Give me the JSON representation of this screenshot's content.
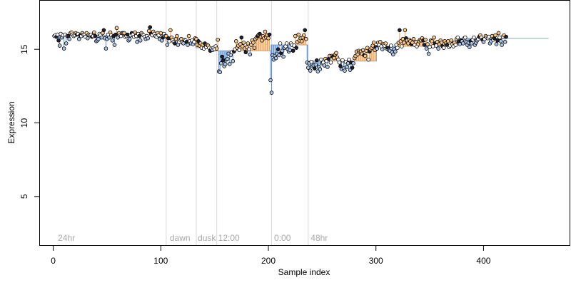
{
  "chart_data": {
    "type": "scatter",
    "title": "",
    "xlabel": "Sample index",
    "ylabel": "Expression",
    "xlim": [
      -13,
      480
    ],
    "ylim": [
      1.7,
      18.3
    ],
    "xticks": [
      0,
      100,
      200,
      300,
      400
    ],
    "yticks": [
      5,
      10,
      15
    ],
    "grid": false,
    "legend": "none",
    "colors": {
      "point_edge": "#000000",
      "point_fill_light": "#ffffff",
      "point_fill_dark": "#1f1f2e",
      "up_fill": "#f7c58a",
      "down_fill": "#a9c4e6",
      "up_stem": "#f2a04f",
      "down_stem": "#5b8fd6",
      "baseline": "#7ea7dc",
      "separator": "#d9d9d9",
      "annotation": "#a8a8a8"
    },
    "separators": [
      105,
      133,
      152,
      203,
      237
    ],
    "annotations": [
      {
        "x": 3,
        "text": "24hr"
      },
      {
        "x": 107,
        "text": "dawn"
      },
      {
        "x": 133,
        "text": "dusk"
      },
      {
        "x": 152,
        "text": "12:00"
      },
      {
        "x": 204,
        "text": "0:00"
      },
      {
        "x": 238,
        "text": "48hr"
      }
    ],
    "segments": [
      {
        "start": 1,
        "end": 104,
        "level": 15.95
      },
      {
        "start": 105,
        "end": 132,
        "level": 15.55
      },
      {
        "start": 133,
        "end": 151,
        "level": 15.1
      },
      {
        "start": 152,
        "end": 202,
        "level": 14.9
      },
      {
        "start": 203,
        "end": 236,
        "level": 15.3
      },
      {
        "start": 237,
        "end": 300,
        "level": 14.2
      },
      {
        "start": 301,
        "end": 375,
        "level": 15.2
      },
      {
        "start": 376,
        "end": 460,
        "level": 15.75
      }
    ],
    "series": [
      {
        "values": [
          15.9,
          15.95,
          15.85,
          16.0,
          15.6,
          15.25,
          16.05,
          15.8,
          15.95,
          15.05,
          16.0,
          15.4,
          15.9,
          15.9,
          15.7,
          16.1,
          16.15,
          16.0,
          15.9,
          15.95,
          16.1,
          16.0,
          16.05,
          15.7,
          15.95,
          15.9,
          16.1,
          16.0,
          16.0,
          15.85,
          16.1,
          15.75,
          16.0,
          15.95,
          16.0,
          15.85,
          15.9,
          16.15,
          15.9,
          15.55,
          15.6,
          15.7,
          16.05,
          15.95,
          15.8,
          16.1,
          16.3,
          15.75,
          15.05,
          15.7,
          16.0,
          15.8,
          16.15,
          15.95,
          15.6,
          15.9,
          15.3,
          16.0,
          16.45,
          15.8,
          16.1,
          15.95,
          15.9,
          16.1,
          16.1,
          16.1,
          15.85,
          15.9,
          16.0,
          15.6,
          15.7,
          15.95,
          16.1,
          16.0,
          15.85,
          16.15,
          15.9,
          15.5,
          16.05,
          15.9,
          15.6,
          16.1,
          16.0,
          15.95,
          15.85,
          15.7,
          15.9,
          15.75,
          16.25,
          16.5,
          16.05,
          15.95,
          16.2,
          16.05,
          15.9,
          15.85,
          16.1,
          15.95,
          15.7,
          16.1,
          15.6,
          15.8,
          16.05,
          15.9,
          15.9,
          15.3,
          15.75,
          15.55,
          16.3,
          15.8,
          15.6,
          15.5,
          15.4,
          15.7,
          15.9,
          15.3,
          15.5,
          15.65,
          15.7,
          15.45,
          15.4,
          15.65,
          15.6,
          15.5,
          15.3,
          15.9,
          15.55,
          15.4,
          15.6,
          15.35,
          15.5,
          15.75,
          15.7,
          15.3,
          15.55,
          15.25,
          15.4,
          15.1,
          15.3,
          15.05,
          15.4,
          15.15,
          15.3,
          15.25,
          15.1,
          14.9,
          15.05,
          14.95,
          15.1,
          15.0,
          15.2,
          15.05,
          15.65,
          13.5,
          13.45,
          14.05,
          14.5,
          14.25,
          13.85,
          14.0,
          14.3,
          14.35,
          14.7,
          14.0,
          14.6,
          14.8,
          14.2,
          14.85,
          15.0,
          15.55,
          15.1,
          15.25,
          14.95,
          15.35,
          15.8,
          15.2,
          15.45,
          15.05,
          14.8,
          15.15,
          15.4,
          15.0,
          14.65,
          15.3,
          15.6,
          15.45,
          15.1,
          15.7,
          15.8,
          15.9,
          16.0,
          16.05,
          15.85,
          15.6,
          15.9,
          15.75,
          16.2,
          15.8,
          15.95,
          15.75,
          16.0,
          12.9,
          12.05,
          14.6,
          14.3,
          14.55,
          14.4,
          14.7,
          15.0,
          14.6,
          15.4,
          14.75,
          14.9,
          14.5,
          15.1,
          15.2,
          15.4,
          15.0,
          14.85,
          14.95,
          15.4,
          15.3,
          14.9,
          15.25,
          15.9,
          15.1,
          15.5,
          16.0,
          15.6,
          15.75,
          15.55,
          15.8,
          15.95,
          16.3,
          15.7,
          14.1,
          13.75,
          14.05,
          13.55,
          14.15,
          13.85,
          13.9,
          13.7,
          13.95,
          14.25,
          13.5,
          13.8,
          13.65,
          14.3,
          14.05,
          14.1,
          13.9,
          14.35,
          14.2,
          13.8,
          14.35,
          14.55,
          14.1,
          14.55,
          14.5,
          14.4,
          14.65,
          14.75,
          14.45,
          14.3,
          14.1,
          13.85,
          13.65,
          14.25,
          13.7,
          13.55,
          14.15,
          13.8,
          14.05,
          14.3,
          13.6,
          14.1,
          13.75,
          14.05,
          14.4,
          14.55,
          14.85,
          14.65,
          14.9,
          14.8,
          14.85,
          14.7,
          14.95,
          14.6,
          14.55,
          14.9,
          15.1,
          14.3,
          14.85,
          15.0,
          15.1,
          15.25,
          15.45,
          14.95,
          15.15,
          15.05,
          15.45,
          15.3,
          15.5,
          15.2,
          15.0,
          15.35,
          15.25,
          15.4,
          15.05,
          15.1,
          14.95,
          14.9,
          15.25,
          14.8,
          14.65,
          15.0,
          14.85,
          15.3,
          15.1,
          15.45,
          16.3,
          15.55,
          15.2,
          15.7,
          15.45,
          16.3,
          15.75,
          15.6,
          15.4,
          15.65,
          15.55,
          15.35,
          15.45,
          15.7,
          15.3,
          15.5,
          15.2,
          15.35,
          15.55,
          15.65,
          15.6,
          15.75,
          15.6,
          15.3,
          15.65,
          15.05,
          15.35,
          14.7,
          15.15,
          15.6,
          15.55,
          15.2,
          15.8,
          15.4,
          15.25,
          15.5,
          15.05,
          15.35,
          15.6,
          15.45,
          15.2,
          15.1,
          15.55,
          15.4,
          15.3,
          15.55,
          15.15,
          15.25,
          15.6,
          15.35,
          15.2,
          15.45,
          15.3,
          15.7,
          15.8,
          15.5,
          15.35,
          15.6,
          15.55,
          15.4,
          15.75,
          15.8,
          15.5,
          15.3,
          15.45,
          15.15,
          15.55,
          15.4,
          15.65,
          15.8,
          15.3,
          15.45,
          15.6,
          15.7,
          15.85,
          15.95,
          15.8,
          15.65,
          15.5,
          15.7,
          15.9,
          15.8,
          15.75,
          15.85,
          15.4,
          15.55,
          15.9,
          15.65,
          15.75,
          15.95,
          15.35,
          15.6,
          16.1,
          15.8,
          15.55,
          15.3,
          15.85,
          15.95,
          15.5,
          15.85
        ]
      }
    ]
  }
}
